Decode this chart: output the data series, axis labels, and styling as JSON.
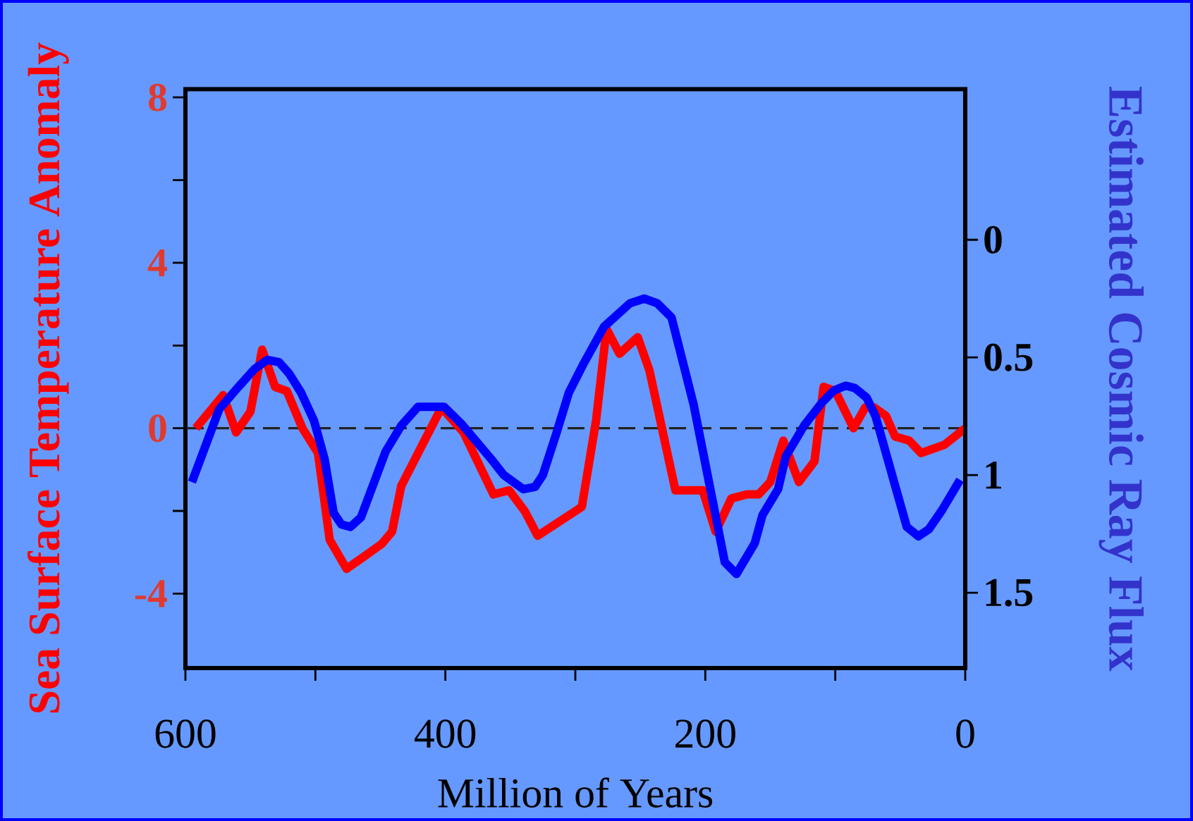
{
  "chart_data": {
    "type": "line",
    "xlabel": "Million of Years",
    "ylabel": "Sea Surface Temperature Anomaly",
    "y2label": "Estimated Cosmic Ray Flux",
    "xlim": [
      600,
      0
    ],
    "xticks": [
      600,
      400,
      200,
      0
    ],
    "ylim": [
      -5.8,
      8.2
    ],
    "yticks": [
      8,
      4,
      0,
      -4
    ],
    "y2lim": [
      1.82,
      -0.64
    ],
    "y2ticks": [
      0,
      0.5,
      1,
      1.5
    ],
    "ref_lines": [
      {
        "axis": "y",
        "value": 0,
        "color": "#222222",
        "line_style": "dashed"
      }
    ],
    "series": [
      {
        "color": "#ff0000",
        "x": [
          592,
          571,
          561,
          550,
          541,
          531,
          522,
          510,
          498,
          489,
          476,
          449,
          441,
          434,
          403,
          386,
          363,
          351,
          339,
          329,
          295,
          284,
          276,
          266,
          252,
          243,
          223,
          202,
          192,
          180,
          168,
          159,
          150,
          140,
          128,
          116,
          109,
          100,
          86,
          77,
          70,
          61,
          54,
          43,
          34,
          16,
          0
        ],
        "values": [
          0.0,
          0.8,
          -0.1,
          0.4,
          1.9,
          1.0,
          0.9,
          0.0,
          -0.6,
          -2.7,
          -3.4,
          -2.8,
          -2.5,
          -1.4,
          0.5,
          -0.1,
          -1.6,
          -1.5,
          -2.0,
          -2.6,
          -1.9,
          0.2,
          2.4,
          1.8,
          2.2,
          1.4,
          -1.5,
          -1.5,
          -2.5,
          -1.7,
          -1.6,
          -1.6,
          -1.3,
          -0.3,
          -1.3,
          -0.8,
          1.0,
          0.9,
          0.0,
          0.5,
          0.5,
          0.3,
          -0.2,
          -0.3,
          -0.6,
          -0.4,
          0.0
        ]
      },
      {
        "color": "#0000ff",
        "axis": "y2",
        "x": [
          595,
          574,
          560,
          547,
          537,
          528,
          520,
          511,
          501,
          493,
          486,
          480,
          473,
          465,
          446,
          434,
          421,
          401,
          388,
          365,
          355,
          340,
          331,
          325,
          315,
          305,
          294,
          278,
          258,
          247,
          237,
          226,
          209,
          185,
          176,
          162,
          156,
          144,
          138,
          124,
          110,
          101,
          92,
          85,
          76,
          69,
          45,
          36,
          28,
          18,
          4
        ],
        "values": [
          1.03,
          0.72,
          0.63,
          0.55,
          0.51,
          0.52,
          0.57,
          0.65,
          0.77,
          0.93,
          1.16,
          1.21,
          1.22,
          1.18,
          0.9,
          0.79,
          0.71,
          0.71,
          0.78,
          0.93,
          1.0,
          1.06,
          1.05,
          1.0,
          0.83,
          0.65,
          0.53,
          0.37,
          0.27,
          0.25,
          0.27,
          0.33,
          0.7,
          1.37,
          1.42,
          1.29,
          1.17,
          1.06,
          0.92,
          0.79,
          0.69,
          0.64,
          0.62,
          0.63,
          0.67,
          0.75,
          1.22,
          1.26,
          1.23,
          1.15,
          1.02
        ]
      }
    ]
  }
}
